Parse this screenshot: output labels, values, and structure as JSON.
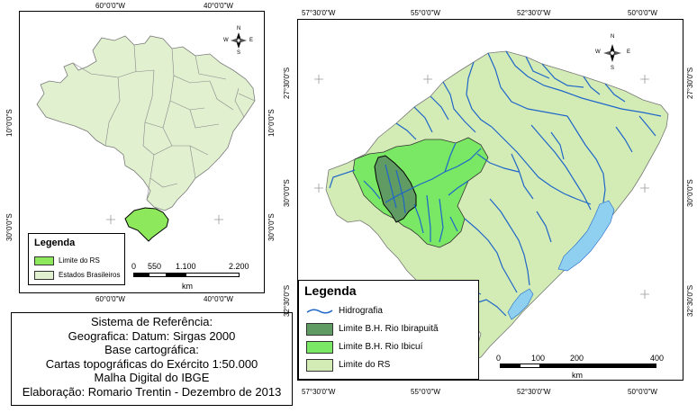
{
  "colors": {
    "rs_fill": "#d3ecb5",
    "rs_limit_bright": "#8ee85b",
    "ibicui": "#7be865",
    "ibirapuita": "#5f9b62",
    "brasil_fill": "#e1f0cf",
    "hidrografia": "#1f66c9",
    "lagoa": "#8fd0f0",
    "border": "#000000"
  },
  "brazil_map": {
    "top_coords": [
      "60°0'0\"W",
      "40°0'0\"W"
    ],
    "bottom_coords": [
      "60°0'0\"W",
      "40°0'0\"W"
    ],
    "left_coords": [
      "10°0'0\"S",
      "30°0'0\"S"
    ],
    "right_coords": [
      "10°0'0\"S",
      "30°0'0\"S"
    ],
    "legend": {
      "title": "Legenda",
      "items": [
        {
          "label": "Limite do RS",
          "color": "#8ee85b"
        },
        {
          "label": "Estados Brasileiros",
          "color": "#e1f0cf"
        }
      ]
    },
    "scale": {
      "ticks": [
        "0",
        "550",
        "1.100",
        "2.200"
      ],
      "unit": "km"
    },
    "north_arrow": {
      "n": "N",
      "s": "S",
      "e": "E",
      "w": "W"
    }
  },
  "rs_map": {
    "top_coords": [
      "57°30'0\"W",
      "55°0'0\"W",
      "52°30'0\"W",
      "50°0'0\"W"
    ],
    "bottom_coords": [
      "57°30'0\"W",
      "55°0'0\"W",
      "52°30'0\"W",
      "50°0'0\"W"
    ],
    "left_coords": [
      "27°30'0\"S",
      "30°0'0\"S",
      "32°30'0\"S"
    ],
    "right_coords": [
      "27°30'0\"S",
      "30°0'0\"S",
      "32°30'0\"S"
    ],
    "legend": {
      "title": "Legenda",
      "items": [
        {
          "label": "Hidrografia",
          "kind": "line"
        },
        {
          "label": "Limite B.H. Rio Ibirapuitã",
          "color": "#5f9b62"
        },
        {
          "label": "Limite B.H. Rio Ibicuí",
          "color": "#7be865"
        },
        {
          "label": "Limite do RS",
          "color": "#d3ecb5"
        }
      ]
    },
    "scale": {
      "ticks": [
        "0",
        "100",
        "200",
        "400"
      ],
      "unit": "km"
    },
    "north_arrow": {
      "n": "N",
      "s": "S",
      "e": "E",
      "w": "W"
    }
  },
  "reference": {
    "lines": [
      "Sistema de Referência:",
      "Geografica: Datum: Sirgas 2000",
      "Base cartográfica:",
      "Cartas topográficas do Exército 1:50.000",
      "Malha Digital do IBGE",
      "Elaboração: Romario Trentin - Dezembro de 2013"
    ]
  }
}
